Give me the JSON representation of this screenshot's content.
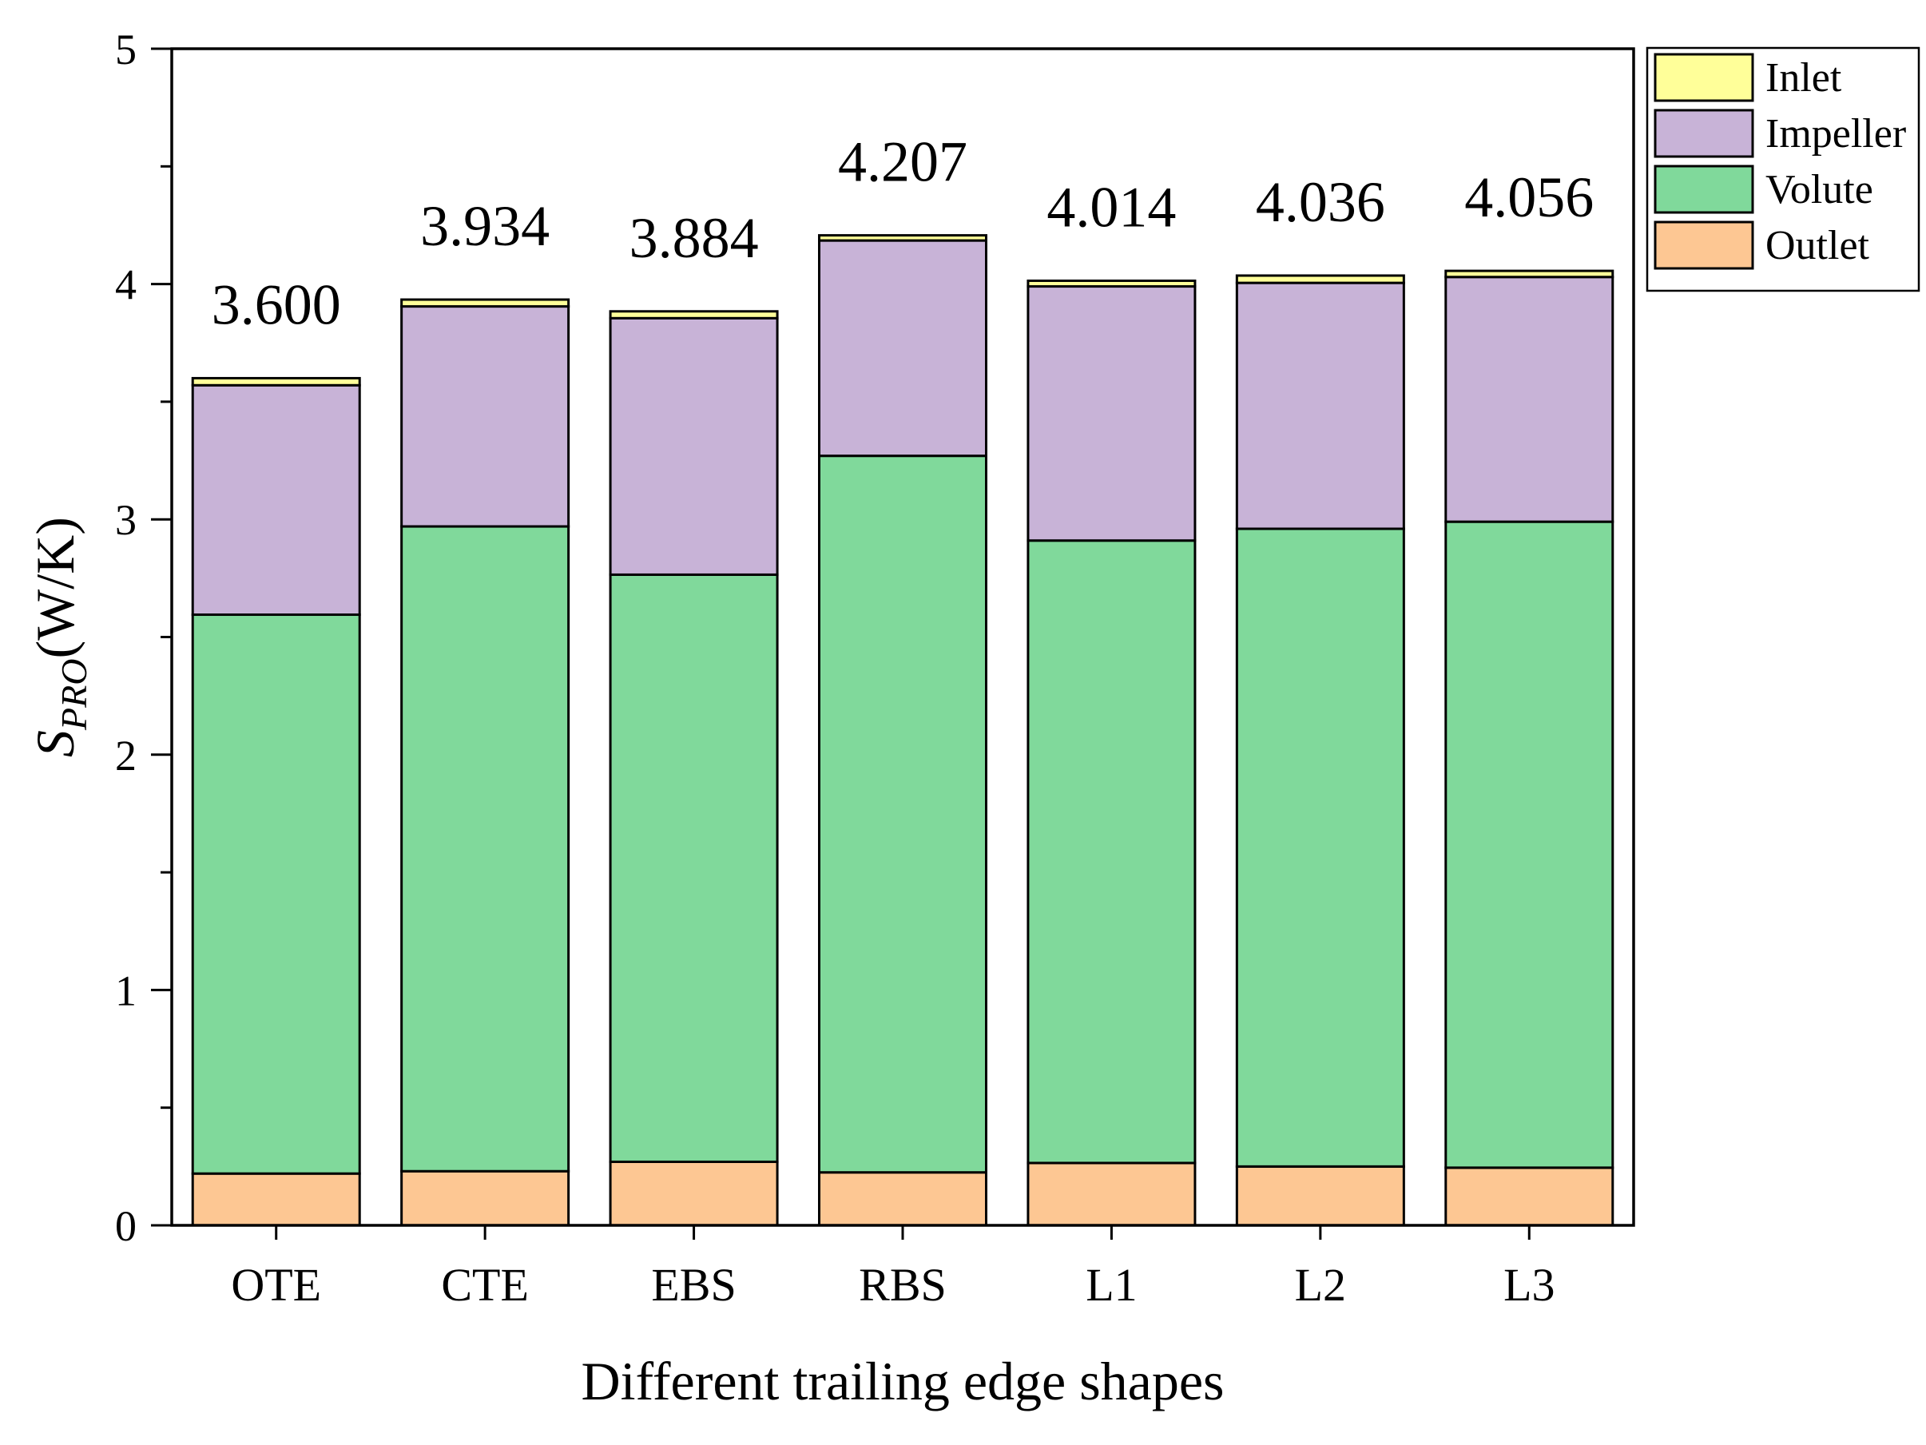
{
  "chart_data": {
    "type": "bar",
    "stacked": true,
    "categories": [
      "OTE",
      "CTE",
      "EBS",
      "RBS",
      "L1",
      "L2",
      "L3"
    ],
    "series": [
      {
        "name": "Outlet",
        "color": "#fdc793",
        "values": [
          0.22,
          0.23,
          0.27,
          0.225,
          0.265,
          0.25,
          0.245
        ]
      },
      {
        "name": "Volute",
        "color": "#80d99b",
        "values": [
          2.375,
          2.74,
          2.495,
          3.045,
          2.645,
          2.71,
          2.745
        ]
      },
      {
        "name": "Impeller",
        "color": "#c8b3d7",
        "values": [
          0.975,
          0.935,
          1.09,
          0.915,
          1.08,
          1.045,
          1.04
        ]
      },
      {
        "name": "Inlet",
        "color": "#ffff99",
        "values": [
          0.03,
          0.029,
          0.029,
          0.022,
          0.024,
          0.031,
          0.026
        ]
      }
    ],
    "totals": [
      "3.600",
      "3.934",
      "3.884",
      "4.207",
      "4.014",
      "4.036",
      "4.056"
    ],
    "legend_order": [
      "Inlet",
      "Impeller",
      "Volute",
      "Outlet"
    ],
    "legend_position": "top-right",
    "title": "",
    "xlabel": "Different trailing edge shapes",
    "ylabel_main": "S",
    "ylabel_sub": "PRO",
    "ylabel_unit": "(W/K)",
    "ylim": [
      0,
      5
    ],
    "yticks": [
      "0",
      "1",
      "2",
      "3",
      "4",
      "5"
    ],
    "grid": false
  }
}
